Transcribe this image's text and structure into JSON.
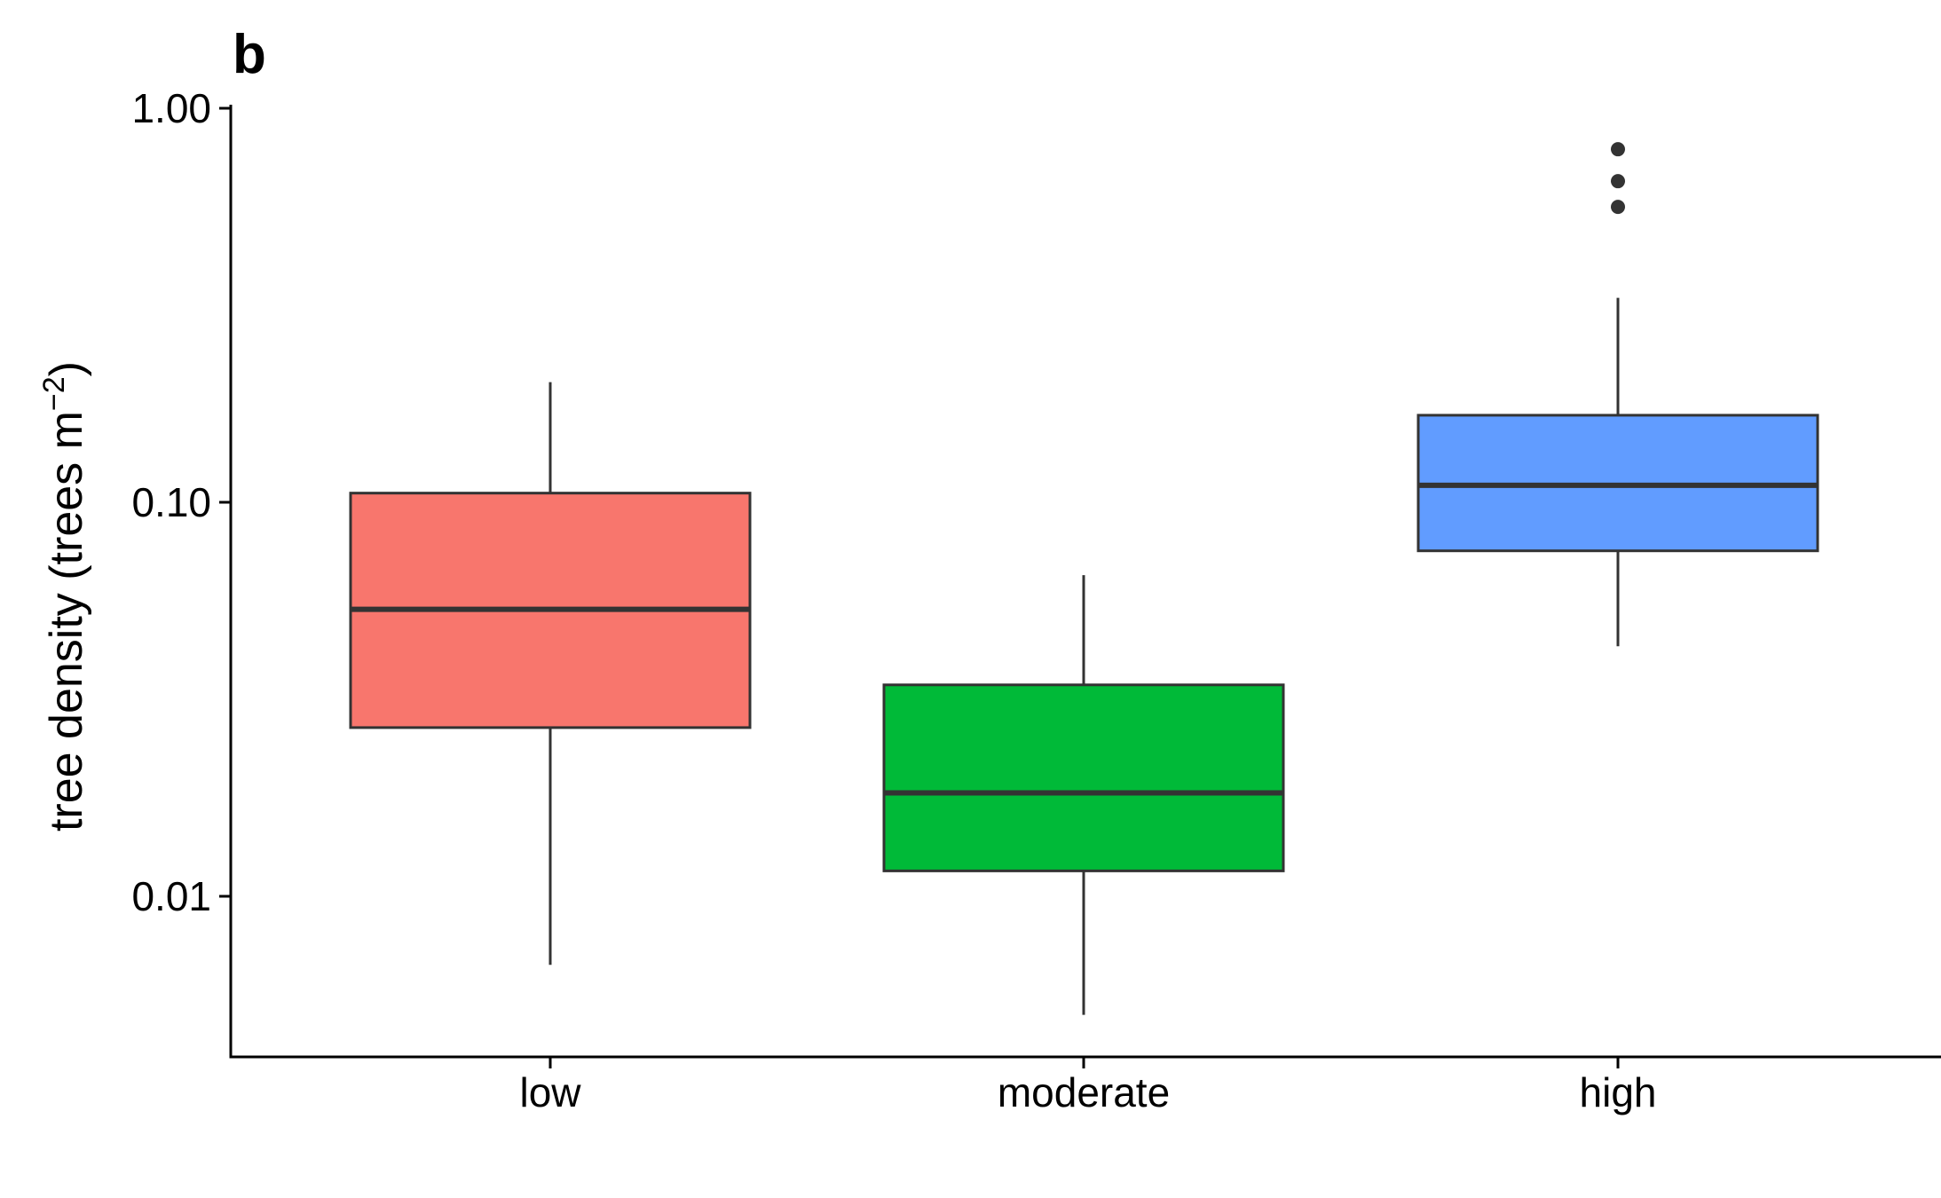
{
  "chart_data": {
    "type": "box",
    "panel_label": "b",
    "title": "",
    "xlabel": "",
    "ylabel": {
      "text": "tree density (trees m",
      "superscript": "−2",
      "close": ")"
    },
    "y_scale": "log10",
    "ylim": [
      0.0046,
      1.0
    ],
    "y_ticks": [
      {
        "value": 1.0,
        "label": "1.00"
      },
      {
        "value": 0.1,
        "label": "0.10"
      },
      {
        "value": 0.01,
        "label": "0.01"
      }
    ],
    "grid": false,
    "legend": "none",
    "categories": [
      "low",
      "moderate",
      "high"
    ],
    "boxes": [
      {
        "category": "low",
        "whisker_low": 0.0067,
        "q1": 0.0268,
        "median": 0.0535,
        "q3": 0.1055,
        "whisker_high": 0.2018,
        "outliers": [],
        "fill": "#F8766D"
      },
      {
        "category": "moderate",
        "whisker_low": 0.005,
        "q1": 0.0116,
        "median": 0.0183,
        "q3": 0.0344,
        "whisker_high": 0.0653,
        "outliers": [],
        "fill": "#00BA38"
      },
      {
        "category": "high",
        "whisker_low": 0.0431,
        "q1": 0.0753,
        "median": 0.1104,
        "q3": 0.1663,
        "whisker_high": 0.3303,
        "outliers": [
          0.562,
          0.653,
          0.787
        ],
        "fill": "#619CFF"
      }
    ],
    "colors": {
      "outline": "#333333",
      "axis": "#000000"
    }
  }
}
